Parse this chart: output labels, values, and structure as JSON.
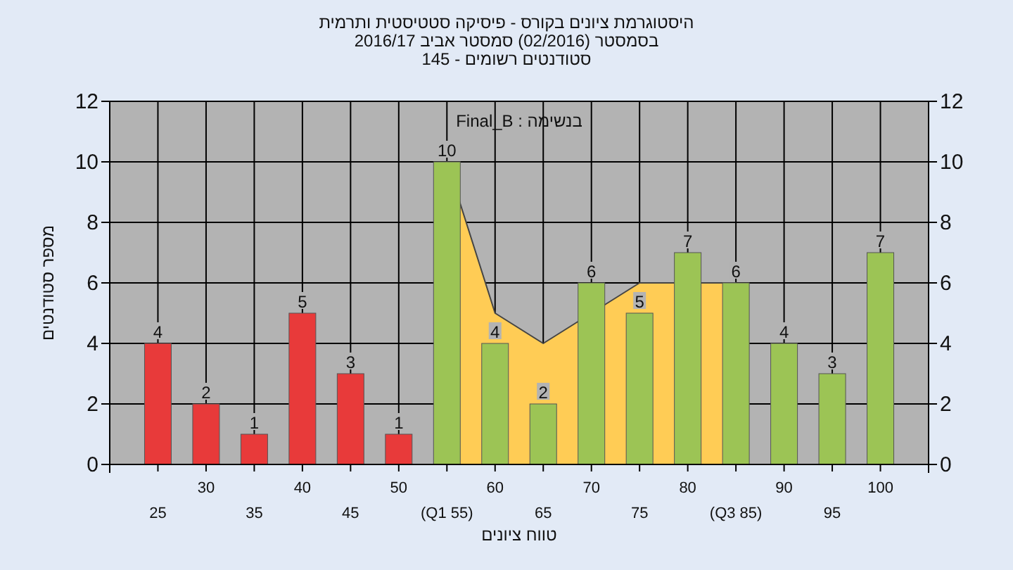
{
  "chart_data": {
    "type": "bar",
    "title": "היסטוגרמת ציונים בקורס - פיסיקה סטטיסטית ותרמית",
    "subtitle": "בסמסטר (02/2016) סמסטר אביב 2016/17\nסטודנטים רשומים - 145",
    "xlabel": "טווח ציונים",
    "ylabel": "מספר סטודנטים",
    "annotations": [
      "בנשימה : Final_B"
    ],
    "categories": [
      "25",
      "30",
      "35",
      "40",
      "45",
      "50",
      "(Q1 55)",
      "60",
      "65",
      "70",
      "75",
      "80",
      "(Q3 85)",
      "90",
      "95",
      "100"
    ],
    "series": [
      {
        "type": "area",
        "color": "#ffcc55",
        "values": [
          null,
          null,
          null,
          null,
          null,
          null,
          10,
          5,
          4,
          null,
          6,
          null,
          6,
          null,
          null,
          null
        ]
      },
      {
        "colors": [
          "#e83a3a",
          "#e83a3a",
          "#e83a3a",
          "#e83a3a",
          "#e83a3a",
          "#e83a3a",
          "#9cc455",
          "#9cc455",
          "#9cc455",
          "#9cc455",
          "#9cc455",
          "#9cc455",
          "#9cc455",
          "#9cc455",
          "#9cc455",
          "#9cc455"
        ],
        "values": [
          4,
          2,
          1,
          5,
          3,
          1,
          10,
          4,
          2,
          6,
          5,
          7,
          6,
          4,
          3,
          7
        ],
        "value_labels": [
          "4",
          "2",
          "1",
          "5",
          "3",
          "1",
          "10",
          "4",
          "2",
          "6",
          "5",
          "7",
          "6",
          "4",
          "3",
          "7"
        ]
      }
    ],
    "ylim": [
      0,
      12
    ],
    "yticks": [
      0,
      2,
      4,
      6,
      8,
      10,
      12
    ],
    "y2lim": [
      0,
      12
    ],
    "y2ticks": [
      0,
      2,
      4,
      6,
      8,
      10,
      12
    ],
    "grid": true
  }
}
